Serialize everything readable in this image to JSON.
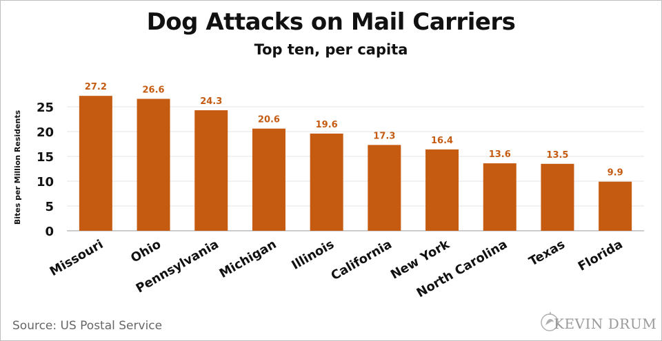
{
  "chart_data": {
    "type": "bar",
    "title": "Dog Attacks on Mail Carriers",
    "subtitle": "Top ten, per capita",
    "xlabel": "",
    "ylabel": "Bites per Million Residents",
    "categories": [
      "Missouri",
      "Ohio",
      "Pennsylvania",
      "Michigan",
      "Illinois",
      "California",
      "New York",
      "North Carolina",
      "Texas",
      "Florida"
    ],
    "values": [
      27.2,
      26.6,
      24.3,
      20.6,
      19.6,
      17.3,
      16.4,
      13.6,
      13.5,
      9.9
    ],
    "data_labels": [
      "27.2",
      "26.6",
      "24.3",
      "20.6",
      "19.6",
      "17.3",
      "16.4",
      "13.6",
      "13.5",
      "9.9"
    ],
    "ylim": [
      0,
      30
    ],
    "yticks": [
      0,
      5,
      10,
      15,
      20,
      25
    ],
    "grid": true,
    "bar_color": "#C55A11",
    "label_color": "#C55A11"
  },
  "source": "Source: US Postal Service",
  "logo_text": "KEVIN DRUM"
}
